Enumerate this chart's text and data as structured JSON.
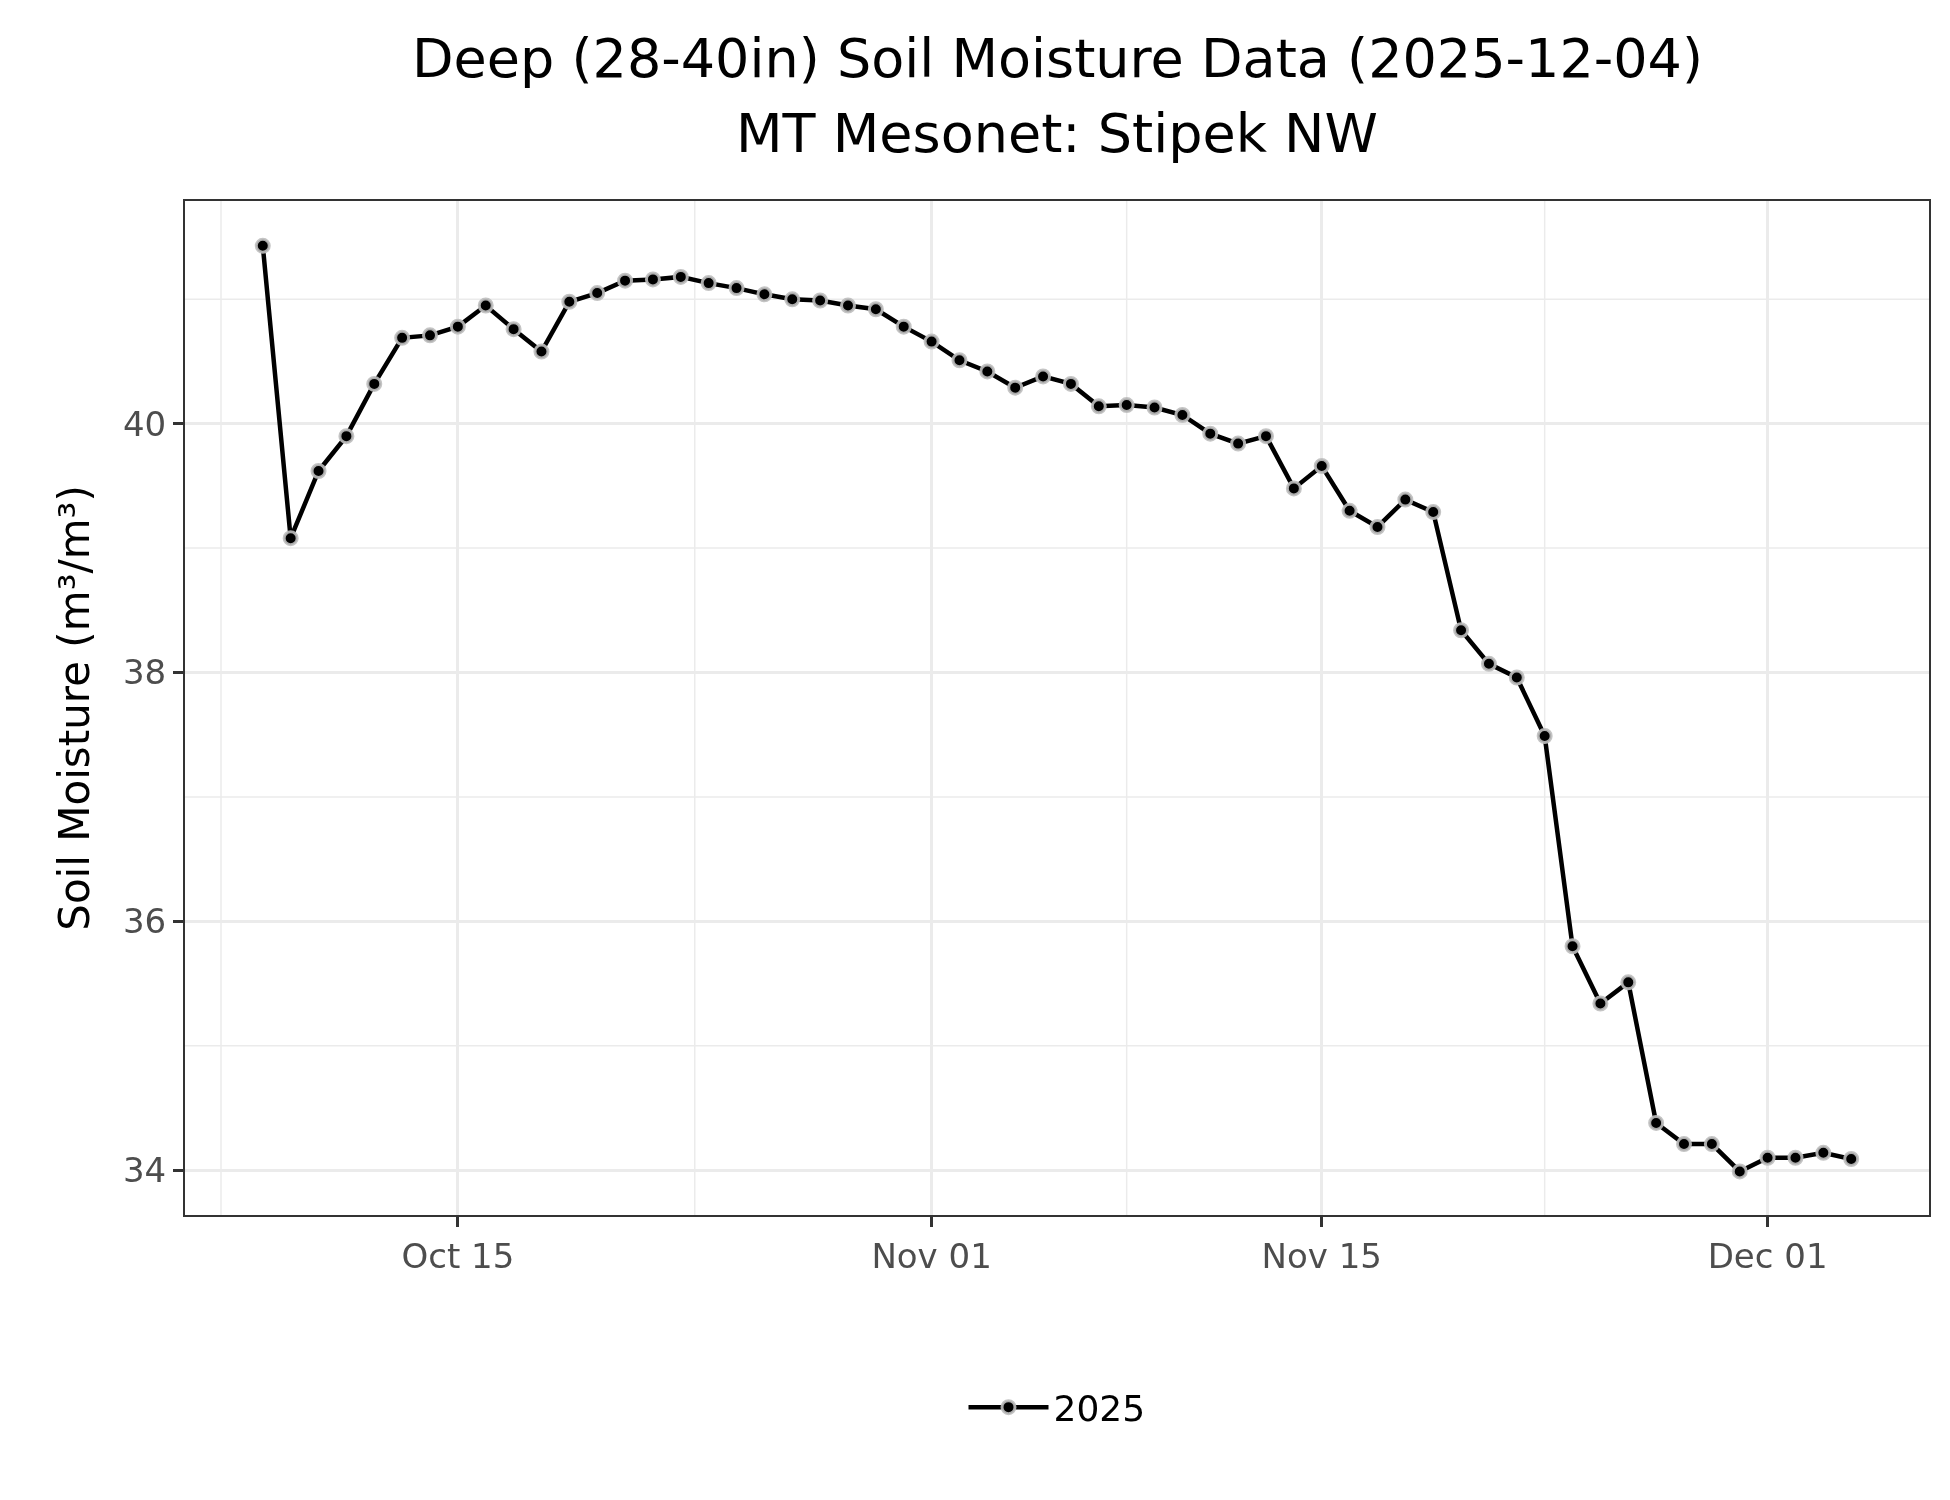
{
  "chart_data": {
    "type": "line",
    "title": "Deep (28-40in) Soil Moisture Data (2025-12-04)",
    "subtitle": "MT Mesonet: Stipek NW",
    "ylabel": "Soil Moisture (m³/m³)",
    "x": [
      "2025-10-08",
      "2025-10-09",
      "2025-10-10",
      "2025-10-11",
      "2025-10-12",
      "2025-10-13",
      "2025-10-14",
      "2025-10-15",
      "2025-10-16",
      "2025-10-17",
      "2025-10-18",
      "2025-10-19",
      "2025-10-20",
      "2025-10-21",
      "2025-10-22",
      "2025-10-23",
      "2025-10-24",
      "2025-10-25",
      "2025-10-26",
      "2025-10-27",
      "2025-10-28",
      "2025-10-29",
      "2025-10-30",
      "2025-10-31",
      "2025-11-01",
      "2025-11-02",
      "2025-11-03",
      "2025-11-04",
      "2025-11-05",
      "2025-11-06",
      "2025-11-07",
      "2025-11-08",
      "2025-11-09",
      "2025-11-10",
      "2025-11-11",
      "2025-11-12",
      "2025-11-13",
      "2025-11-14",
      "2025-11-15",
      "2025-11-16",
      "2025-11-17",
      "2025-11-18",
      "2025-11-19",
      "2025-11-20",
      "2025-11-21",
      "2025-11-22",
      "2025-11-23",
      "2025-11-24",
      "2025-11-25",
      "2025-11-26",
      "2025-11-27",
      "2025-11-28",
      "2025-11-29",
      "2025-11-30",
      "2025-12-01",
      "2025-12-02",
      "2025-12-03",
      "2025-12-04"
    ],
    "series": [
      {
        "name": "2025",
        "color": "#000000",
        "values": [
          41.43,
          39.08,
          39.62,
          39.9,
          40.32,
          40.69,
          40.71,
          40.78,
          40.95,
          40.76,
          40.58,
          40.98,
          41.05,
          41.15,
          41.16,
          41.18,
          41.13,
          41.09,
          41.04,
          41.0,
          40.99,
          40.95,
          40.92,
          40.78,
          40.66,
          40.51,
          40.42,
          40.29,
          40.38,
          40.32,
          40.14,
          40.15,
          40.13,
          40.07,
          39.92,
          39.84,
          39.9,
          39.48,
          39.66,
          39.3,
          39.17,
          39.39,
          39.29,
          38.34,
          38.07,
          37.96,
          37.49,
          35.8,
          35.34,
          35.51,
          34.38,
          34.21,
          34.21,
          33.99,
          34.1,
          34.1,
          34.14,
          34.09
        ]
      }
    ],
    "xlim": [
      "2025-10-05T05:00",
      "2025-12-06T19:00"
    ],
    "xticks": [
      {
        "value": "2025-10-06T12:00",
        "label": null
      },
      {
        "value": "2025-10-15",
        "label": "Oct 15"
      },
      {
        "value": "2025-10-23T12:00",
        "label": null
      },
      {
        "value": "2025-11-01",
        "label": "Nov 01"
      },
      {
        "value": "2025-11-08",
        "label": null
      },
      {
        "value": "2025-11-15",
        "label": "Nov 15"
      },
      {
        "value": "2025-11-23",
        "label": null
      },
      {
        "value": "2025-12-01",
        "label": "Dec 01"
      }
    ],
    "ylim": [
      33.64,
      41.79
    ],
    "yticks": [
      34,
      {
        "value": 35,
        "label": null
      },
      36,
      {
        "value": 37,
        "label": null
      },
      38,
      {
        "value": 39,
        "label": null
      },
      40,
      {
        "value": 41,
        "label": null
      }
    ],
    "grid": true,
    "legend": "bottom",
    "marker": "circle",
    "line_style": "solid"
  }
}
